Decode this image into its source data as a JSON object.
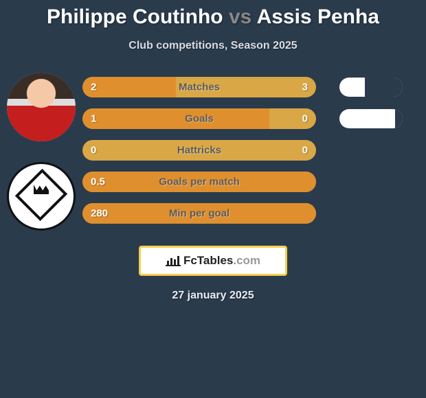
{
  "title": {
    "player1": "Philippe Coutinho",
    "vs": "vs",
    "player2": "Assis Penha"
  },
  "subtitle": "Club competitions, Season 2025",
  "bar_colors": {
    "left": "#df8f2d",
    "right": "#d9a746",
    "text": "#5b5b5b",
    "value_text": "#ffffff"
  },
  "pill_colors": {
    "player1": "#ffffff",
    "player2": "#2a3b4c"
  },
  "stats": [
    {
      "label": "Matches",
      "v1": "2",
      "v2": "3",
      "left_pct": 40,
      "pill_right_pct": 60
    },
    {
      "label": "Goals",
      "v1": "1",
      "v2": "0",
      "left_pct": 80,
      "pill_right_pct": 12
    },
    {
      "label": "Hattricks",
      "v1": "0",
      "v2": "0",
      "left_pct": 0,
      "pill_right_pct": null
    },
    {
      "label": "Goals per match",
      "v1": "0.5",
      "v2": "",
      "left_pct": 100,
      "pill_right_pct": null
    },
    {
      "label": "Min per goal",
      "v1": "280",
      "v2": "",
      "left_pct": 100,
      "pill_right_pct": null
    }
  ],
  "logo": {
    "brand": "FcTables",
    "domain": ".com"
  },
  "date": "27 january 2025",
  "background_color": "#2a3b4c"
}
